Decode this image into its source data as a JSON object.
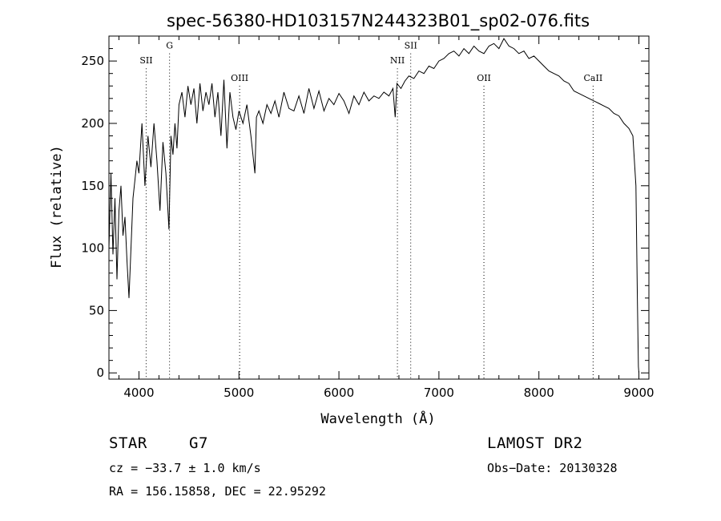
{
  "chart_data": {
    "type": "line",
    "title": "spec-56380-HD103157N244323B01_sp02-076.fits",
    "xlabel": "Wavelength (Å)",
    "ylabel": "Flux (relative)",
    "xlim": [
      3700,
      9100
    ],
    "ylim": [
      -5,
      270
    ],
    "xticks": [
      4000,
      5000,
      6000,
      7000,
      8000,
      9000
    ],
    "yticks": [
      0,
      50,
      100,
      150,
      200,
      250
    ],
    "grid": false,
    "line_color": "#000000",
    "spectral_lines": [
      {
        "label": "SII",
        "x": 4072,
        "label_y": 248
      },
      {
        "label": "G",
        "x": 4306,
        "label_y": 260
      },
      {
        "label": "OIII",
        "x": 5007,
        "label_y": 234
      },
      {
        "label": "NII",
        "x": 6585,
        "label_y": 248
      },
      {
        "label": "SII",
        "x": 6718,
        "label_y": 260
      },
      {
        "label": "OII",
        "x": 7450,
        "label_y": 234
      },
      {
        "label": "CaII",
        "x": 8542,
        "label_y": 234
      }
    ],
    "series": [
      {
        "x": [
          3700,
          3720,
          3740,
          3760,
          3780,
          3800,
          3820,
          3840,
          3860,
          3880,
          3900,
          3920,
          3940,
          3960,
          3980,
          4000,
          4030,
          4060,
          4090,
          4120,
          4150,
          4180,
          4210,
          4240,
          4270,
          4300,
          4320,
          4340,
          4360,
          4380,
          4400,
          4430,
          4460,
          4490,
          4520,
          4550,
          4580,
          4610,
          4640,
          4670,
          4700,
          4730,
          4760,
          4790,
          4820,
          4850,
          4880,
          4910,
          4940,
          4970,
          5000,
          5040,
          5080,
          5120,
          5160,
          5175,
          5200,
          5240,
          5280,
          5320,
          5360,
          5400,
          5450,
          5500,
          5550,
          5600,
          5650,
          5700,
          5750,
          5800,
          5850,
          5900,
          5950,
          6000,
          6050,
          6100,
          6150,
          6200,
          6250,
          6300,
          6350,
          6400,
          6450,
          6500,
          6540,
          6563,
          6580,
          6620,
          6660,
          6700,
          6750,
          6800,
          6850,
          6900,
          6950,
          7000,
          7050,
          7100,
          7150,
          7200,
          7250,
          7300,
          7350,
          7400,
          7450,
          7500,
          7550,
          7600,
          7650,
          7700,
          7750,
          7800,
          7850,
          7900,
          7950,
          8000,
          8050,
          8100,
          8150,
          8200,
          8250,
          8300,
          8350,
          8400,
          8450,
          8500,
          8550,
          8600,
          8650,
          8700,
          8750,
          8800,
          8850,
          8900,
          8940,
          8970,
          8985,
          8995,
          9000
        ],
        "y": [
          100,
          160,
          95,
          140,
          75,
          130,
          150,
          110,
          125,
          90,
          60,
          100,
          140,
          155,
          170,
          160,
          200,
          150,
          190,
          165,
          200,
          170,
          130,
          185,
          160,
          115,
          190,
          175,
          200,
          180,
          215,
          225,
          205,
          230,
          215,
          228,
          200,
          232,
          210,
          225,
          215,
          232,
          205,
          225,
          190,
          235,
          180,
          225,
          205,
          195,
          210,
          200,
          215,
          190,
          160,
          205,
          210,
          200,
          215,
          208,
          218,
          205,
          225,
          212,
          210,
          222,
          208,
          228,
          212,
          226,
          210,
          220,
          215,
          224,
          218,
          208,
          222,
          215,
          225,
          218,
          222,
          220,
          225,
          222,
          228,
          205,
          232,
          228,
          234,
          238,
          236,
          242,
          240,
          246,
          244,
          250,
          252,
          256,
          258,
          254,
          260,
          256,
          262,
          258,
          256,
          262,
          264,
          260,
          268,
          262,
          260,
          256,
          258,
          252,
          254,
          250,
          246,
          242,
          240,
          238,
          234,
          232,
          226,
          224,
          222,
          220,
          218,
          216,
          214,
          212,
          208,
          206,
          200,
          196,
          190,
          150,
          60,
          5,
          0
        ]
      }
    ],
    "object_class": "STAR",
    "subclass": "G7",
    "cz": "cz = −33.7 ± 1.0 km/s",
    "coords": "RA = 156.15858, DEC =  22.95292",
    "survey": "LAMOST DR2",
    "obs_date": "Obs−Date: 20130328"
  }
}
